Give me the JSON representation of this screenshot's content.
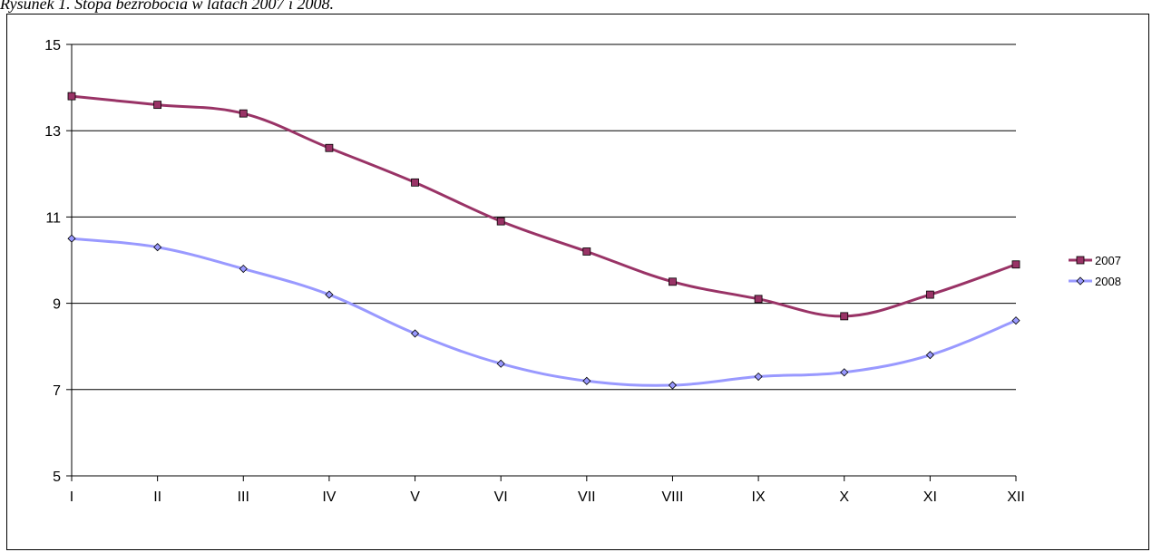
{
  "caption": "Rysunek 1. Stopa bezrobocia w latach 2007 i 2008.",
  "chart_data": {
    "type": "line",
    "title": "",
    "xlabel": "",
    "ylabel": "",
    "categories": [
      "I",
      "II",
      "III",
      "IV",
      "V",
      "VI",
      "VII",
      "VIII",
      "IX",
      "X",
      "XI",
      "XII"
    ],
    "ylim": [
      5,
      15
    ],
    "yticks": [
      5,
      7,
      9,
      11,
      13,
      15
    ],
    "grid": true,
    "legend_position": "right",
    "series": [
      {
        "name": "2007",
        "color": "#993366",
        "marker": "square",
        "values": [
          13.8,
          13.6,
          13.4,
          12.6,
          11.8,
          10.9,
          10.2,
          9.5,
          9.1,
          8.7,
          9.2,
          9.9
        ]
      },
      {
        "name": "2008",
        "color": "#9999ff",
        "marker": "diamond",
        "values": [
          10.5,
          10.3,
          9.8,
          9.2,
          8.3,
          7.6,
          7.2,
          7.1,
          7.3,
          7.4,
          7.8,
          8.6
        ]
      }
    ]
  }
}
